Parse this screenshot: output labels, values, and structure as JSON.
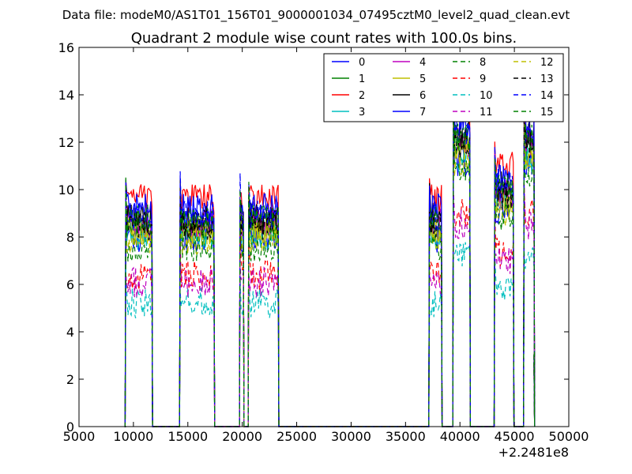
{
  "figure": {
    "suptitle": "Data file: modeM0/AS1T01_156T01_9000001034_07495cztM0_level2_quad_clean.evt"
  },
  "chart_data": {
    "type": "line",
    "title": "Quadrant 2 module wise count rates with 100.0s bins.",
    "xlabel": "",
    "ylabel": "",
    "x_offset_label": "+2.2481e8",
    "xlim": [
      5000,
      50000
    ],
    "ylim": [
      0,
      16
    ],
    "x_ticks": [
      "5000",
      "10000",
      "15000",
      "20000",
      "25000",
      "30000",
      "35000",
      "40000",
      "45000",
      "50000"
    ],
    "y_ticks": [
      "0",
      "2",
      "4",
      "6",
      "8",
      "10",
      "12",
      "14",
      "16"
    ],
    "grid": false,
    "legend_position": "top-right",
    "legend_columns": 4,
    "intervals": [
      [
        9300,
        11700
      ],
      [
        14300,
        17400
      ],
      [
        19800,
        20100
      ],
      [
        20600,
        23300
      ],
      [
        37200,
        38300
      ],
      [
        39400,
        40900
      ],
      [
        43200,
        44900
      ],
      [
        45900,
        46800
      ]
    ],
    "series": [
      {
        "name": "0",
        "color": "#0000ff",
        "dash": "solid",
        "level": 8.0
      },
      {
        "name": "1",
        "color": "#008000",
        "dash": "solid",
        "level": 8.4
      },
      {
        "name": "2",
        "color": "#ff0000",
        "dash": "solid",
        "level": 9.6
      },
      {
        "name": "3",
        "color": "#00bfbf",
        "dash": "solid",
        "level": 8.1
      },
      {
        "name": "4",
        "color": "#bf00bf",
        "dash": "solid",
        "level": 8.6
      },
      {
        "name": "5",
        "color": "#bfbf00",
        "dash": "solid",
        "level": 8.3
      },
      {
        "name": "6",
        "color": "#000000",
        "dash": "solid",
        "level": 8.8
      },
      {
        "name": "7",
        "color": "#0000ff",
        "dash": "solid",
        "level": 9.2
      },
      {
        "name": "8",
        "color": "#008000",
        "dash": "dashed",
        "level": 7.6
      },
      {
        "name": "9",
        "color": "#ff0000",
        "dash": "dashed",
        "level": 6.4
      },
      {
        "name": "10",
        "color": "#00bfbf",
        "dash": "dashed",
        "level": 5.2
      },
      {
        "name": "11",
        "color": "#bf00bf",
        "dash": "dashed",
        "level": 6.1
      },
      {
        "name": "12",
        "color": "#bfbf00",
        "dash": "dashed",
        "level": 7.9
      },
      {
        "name": "13",
        "color": "#000000",
        "dash": "dashed",
        "level": 8.5
      },
      {
        "name": "14",
        "color": "#0000ff",
        "dash": "dashed",
        "level": 8.9
      },
      {
        "name": "15",
        "color": "#008000",
        "dash": "dashed",
        "level": 8.7
      }
    ]
  }
}
